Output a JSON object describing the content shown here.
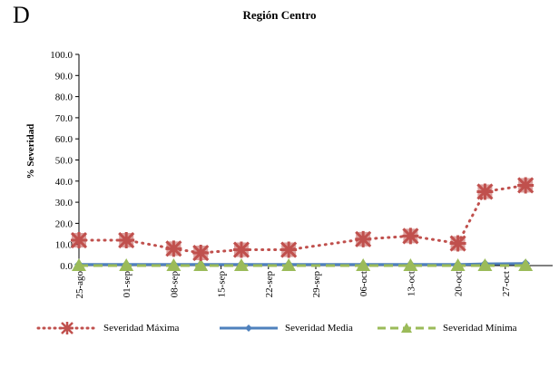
{
  "panel_label": "D",
  "chart_data": {
    "type": "line",
    "title": "Región Centro",
    "xlabel": "",
    "ylabel": "% Severidad",
    "ylim": [
      0,
      100
    ],
    "yticks": [
      "0.0",
      "10.0",
      "20.0",
      "30.0",
      "40.0",
      "50.0",
      "60.0",
      "70.0",
      "80.0",
      "90.0",
      "100.0"
    ],
    "categories": [
      "25-ago",
      "01-sep",
      "08-sep",
      "15-sep",
      "22-sep",
      "29-sep",
      "06-oct",
      "13-oct",
      "20-oct",
      "27-oct"
    ],
    "x": [
      "25-ago",
      "01-sep",
      "08-sep",
      "12-sep",
      "18-sep",
      "25-sep",
      "06-oct",
      "13-oct",
      "20-oct",
      "24-oct",
      "30-oct"
    ],
    "series": [
      {
        "name": "Severidad Máxima",
        "color": "#C0504D",
        "style": "dotted",
        "marker": "star",
        "values": [
          12,
          12,
          8,
          6,
          7.5,
          7.5,
          12.5,
          14,
          10.5,
          35,
          38
        ]
      },
      {
        "name": "Severidad Media",
        "color": "#4F81BD",
        "style": "solid",
        "marker": "diamond",
        "values": [
          0.5,
          0.5,
          0.5,
          0.5,
          0.5,
          0.5,
          0.5,
          0.5,
          0.5,
          0.8,
          1.0
        ]
      },
      {
        "name": "Severidad Mínima",
        "color": "#9BBB59",
        "style": "dashed",
        "marker": "triangle",
        "values": [
          0,
          0,
          0,
          0,
          0,
          0,
          0,
          0,
          0,
          0,
          0
        ]
      }
    ],
    "grid": false,
    "legend_position": "bottom"
  }
}
